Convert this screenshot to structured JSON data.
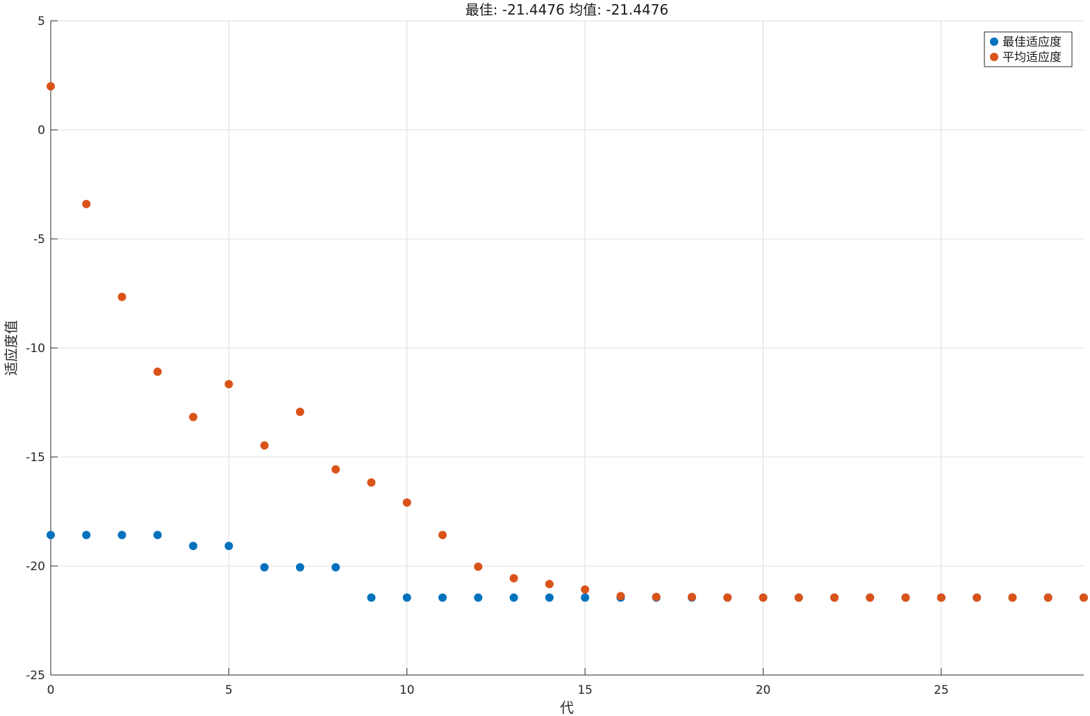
{
  "chart_data": {
    "type": "scatter",
    "title": "最佳: -21.4476 均值: -21.4476",
    "xlabel": "代",
    "ylabel": "适应度值",
    "xlim": [
      0,
      29
    ],
    "ylim": [
      -25,
      5
    ],
    "xticks": [
      0,
      5,
      10,
      15,
      20,
      25
    ],
    "yticks": [
      5,
      0,
      -5,
      -10,
      -15,
      -20,
      -25
    ],
    "grid": true,
    "legend_position": "top-right",
    "x": [
      0,
      1,
      2,
      3,
      4,
      5,
      6,
      7,
      8,
      9,
      10,
      11,
      12,
      13,
      14,
      15,
      16,
      17,
      18,
      19,
      20,
      21,
      22,
      23,
      24,
      25,
      26,
      27,
      28,
      29
    ],
    "series": [
      {
        "name": "最佳适应度",
        "color": "#0072BD",
        "values": [
          -18.58,
          -18.58,
          -18.58,
          -18.58,
          -19.08,
          -19.08,
          -20.06,
          -20.06,
          -20.06,
          -21.45,
          -21.45,
          -21.45,
          -21.45,
          -21.45,
          -21.45,
          -21.45,
          -21.45,
          -21.45,
          -21.45,
          -21.45,
          -21.45,
          -21.45,
          -21.45,
          -21.45,
          -21.45,
          -21.45,
          -21.45,
          -21.45,
          -21.45,
          -21.45
        ]
      },
      {
        "name": "平均适应度",
        "color": "#D95319",
        "values": [
          2.0,
          -3.4,
          -7.66,
          -11.09,
          -13.17,
          -11.66,
          -14.47,
          -12.93,
          -15.57,
          -16.17,
          -17.09,
          -18.58,
          -20.03,
          -20.56,
          -20.83,
          -21.08,
          -21.38,
          -21.42,
          -21.42,
          -21.45,
          -21.45,
          -21.45,
          -21.45,
          -21.45,
          -21.45,
          -21.45,
          -21.45,
          -21.45,
          -21.45,
          -21.45
        ]
      }
    ]
  }
}
